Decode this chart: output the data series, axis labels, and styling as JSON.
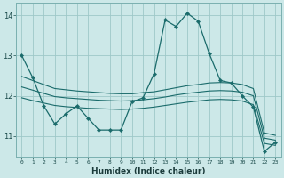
{
  "xlabel": "Humidex (Indice chaleur)",
  "bg_color": "#cce8e8",
  "grid_color": "#9ec8c8",
  "line_color": "#1a6b6b",
  "xlim": [
    -0.5,
    23.5
  ],
  "ylim": [
    10.5,
    14.3
  ],
  "yticks": [
    11,
    12,
    13,
    14
  ],
  "xtick_labels": [
    "0",
    "1",
    "2",
    "3",
    "4",
    "5",
    "6",
    "7",
    "8",
    "9",
    "10",
    "11",
    "12",
    "13",
    "14",
    "15",
    "16",
    "17",
    "18",
    "19",
    "20",
    "21",
    "22",
    "23"
  ],
  "line1_x": [
    0,
    1,
    2,
    3,
    4,
    5,
    6,
    7,
    8,
    9,
    10,
    11,
    12,
    13,
    14,
    15,
    16,
    17,
    18,
    19,
    20,
    21,
    22,
    23
  ],
  "line1_y": [
    13.0,
    12.45,
    11.75,
    11.3,
    11.55,
    11.75,
    11.45,
    11.15,
    11.15,
    11.15,
    11.85,
    11.95,
    12.55,
    13.88,
    13.72,
    14.05,
    13.85,
    13.05,
    12.38,
    12.32,
    12.0,
    11.72,
    10.62,
    10.85
  ],
  "line2_x": [
    0,
    1,
    2,
    3,
    4,
    5,
    6,
    7,
    8,
    9,
    10,
    11,
    12,
    13,
    14,
    15,
    16,
    17,
    18,
    19,
    20,
    21,
    22,
    23
  ],
  "line2_y": [
    12.48,
    12.38,
    12.28,
    12.18,
    12.15,
    12.12,
    12.1,
    12.08,
    12.06,
    12.05,
    12.05,
    12.08,
    12.1,
    12.15,
    12.2,
    12.25,
    12.28,
    12.32,
    12.33,
    12.32,
    12.28,
    12.18,
    11.08,
    11.02
  ],
  "line3_x": [
    0,
    1,
    2,
    3,
    4,
    5,
    6,
    7,
    8,
    9,
    10,
    11,
    12,
    13,
    14,
    15,
    16,
    17,
    18,
    19,
    20,
    21,
    22,
    23
  ],
  "line3_y": [
    12.22,
    12.14,
    12.06,
    11.98,
    11.95,
    11.93,
    11.91,
    11.89,
    11.88,
    11.87,
    11.88,
    11.9,
    11.93,
    11.97,
    12.02,
    12.06,
    12.09,
    12.12,
    12.13,
    12.12,
    12.09,
    12.0,
    10.95,
    10.9
  ],
  "line4_x": [
    0,
    1,
    2,
    3,
    4,
    5,
    6,
    7,
    8,
    9,
    10,
    11,
    12,
    13,
    14,
    15,
    16,
    17,
    18,
    19,
    20,
    21,
    22,
    23
  ],
  "line4_y": [
    11.95,
    11.88,
    11.82,
    11.76,
    11.73,
    11.71,
    11.69,
    11.68,
    11.67,
    11.66,
    11.67,
    11.69,
    11.72,
    11.76,
    11.8,
    11.84,
    11.87,
    11.9,
    11.91,
    11.9,
    11.87,
    11.78,
    10.82,
    10.77
  ]
}
